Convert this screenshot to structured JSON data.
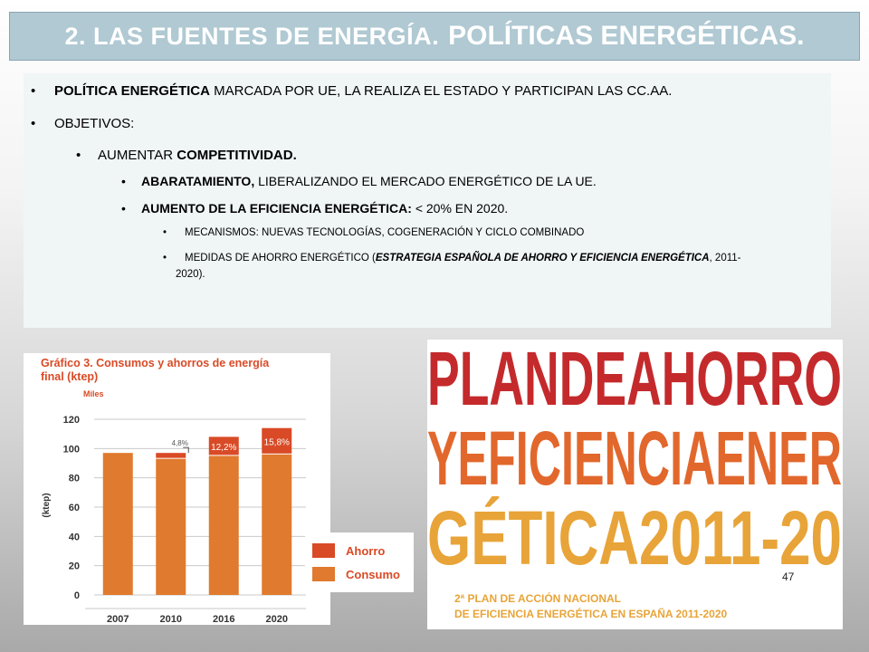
{
  "title": {
    "small": "2. LAS FUENTES DE ENERGÍA.",
    "big": "POLÍTICAS ENERGÉTICAS."
  },
  "bullets": {
    "b1_bold": "POLÍTICA ENERGÉTICA",
    "b1_rest": " MARCADA POR UE, LA REALIZA EL ESTADO Y PARTICIPAN LAS CC.AA.",
    "b2": "OBJETIVOS:",
    "b3_pre": "AUMENTAR ",
    "b3_bold": "COMPETITIVIDAD.",
    "b4_bold": "ABARATAMIENTO,",
    "b4_rest": " LIBERALIZANDO EL MERCADO ENERGÉTICO DE LA UE.",
    "b5_bold": "AUMENTO DE LA EFICIENCIA ENERGÉTICA:",
    "b5_rest": " < 20% EN 2020.",
    "b6": "MECANISMOS: NUEVAS TECNOLOGÍAS, COGENERACIÓN Y CICLO COMBINADO",
    "b7_pre": "MEDIDAS DE AHORRO ENERGÉTICO (",
    "b7_bi": "ESTRATEGIA ESPAÑOLA DE AHORRO Y EFICIENCIA ENERGÉTICA",
    "b7_post_line1": ", 2011-",
    "b7_post_line2": "2020)."
  },
  "chart_data": {
    "type": "bar",
    "title": "Gráfico 3. Consumos y ahorros de energía final (ktep)",
    "title_line1": "Gráfico 3. Consumos y ahorros de energía",
    "title_line2": "final (ktep)",
    "unit_label": "Miles",
    "ylabel": "(ktep)",
    "ylim": [
      0,
      120
    ],
    "yticks": [
      "0",
      "20",
      "40",
      "60",
      "80",
      "100",
      "120"
    ],
    "categories": [
      "2007",
      "2010",
      "2016",
      "2020"
    ],
    "stacked": true,
    "series": [
      {
        "name": "Consumo",
        "values": [
          97,
          93,
          95,
          96
        ],
        "color": "#e07a2e"
      },
      {
        "name": "Ahorro",
        "values": [
          0,
          4,
          13,
          18
        ],
        "color": "#d94a26"
      }
    ],
    "data_labels": [
      "",
      "4,8%",
      "12,2%",
      "15,8%"
    ],
    "legend": [
      "Ahorro",
      "Consumo"
    ],
    "legend_position": "right"
  },
  "plan": {
    "line1": "PLANDEAHORRO",
    "line2": "YEFICIENCIAENER",
    "line3": "GÉTICA2011-20",
    "sub1": "2ª PLAN DE ACCIÓN NACIONAL",
    "sub2": "DE EFICIENCIA ENERGÉTICA EN ESPAÑA 2011-2020",
    "colors": [
      "#c42a2c",
      "#e2672c",
      "#e8a438"
    ]
  },
  "slide_number": "47"
}
